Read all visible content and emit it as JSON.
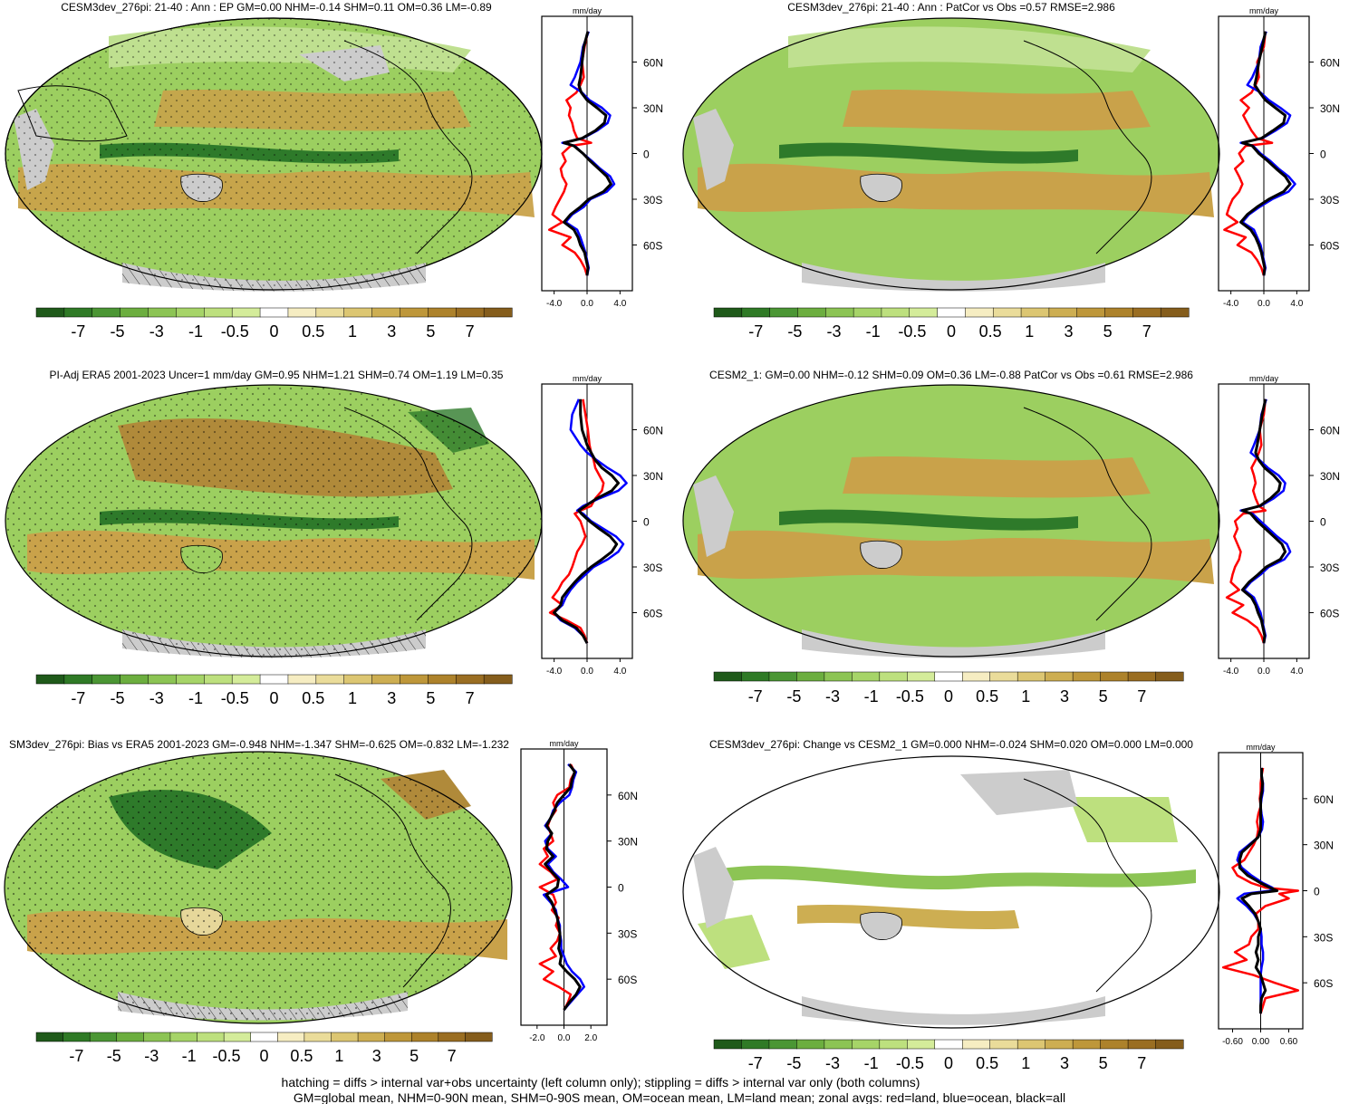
{
  "colorbar": {
    "labels": [
      "-7",
      "-5",
      "-3",
      "-1",
      "-0.5",
      "0",
      "0.5",
      "1",
      "3",
      "5",
      "7"
    ],
    "colors": [
      "#1f5a1a",
      "#2f7a26",
      "#4b9634",
      "#6cae3f",
      "#8cc454",
      "#a6d468",
      "#bde07e",
      "#d4ec9a",
      "#ffffff",
      "#f6edc2",
      "#eadc9a",
      "#dcc672",
      "#cdae52",
      "#be973a",
      "#ad822b",
      "#9a6e22",
      "#855d1c"
    ]
  },
  "colors": {
    "land": "#ff0000",
    "ocean": "#0000ff",
    "all": "#000000",
    "missing": "#cccccc"
  },
  "panels": [
    {
      "title": "CESM3dev_276pi: 21-40 : Ann : EP GM=0.00 NHM=-0.14 SHM=0.11 OM=0.36 LM=-0.89",
      "unit": "mm/day",
      "xticks": [
        "-4.0",
        "0.0",
        "4.0"
      ],
      "yticks": [
        "60N",
        "30N",
        "0",
        "30S",
        "60S"
      ]
    },
    {
      "title": "CESM3dev_276pi: 21-40 : Ann : PatCor vs Obs =0.57 RMSE=2.986",
      "unit": "mm/day",
      "xticks": [
        "-4.0",
        "0.0",
        "4.0"
      ],
      "yticks": [
        "60N",
        "30N",
        "0",
        "30S",
        "60S"
      ]
    },
    {
      "title": "PI-Adj ERA5 2001-2023 Uncer=1 mm/day GM=0.95 NHM=1.21 SHM=0.74 OM=1.19 LM=0.35",
      "unit": "mm/day",
      "xticks": [
        "-4.0",
        "0.0",
        "4.0"
      ],
      "yticks": [
        "60N",
        "30N",
        "0",
        "30S",
        "60S"
      ]
    },
    {
      "title": "CESM2_1: GM=0.00 NHM=-0.12 SHM=0.09 OM=0.36 LM=-0.88 PatCor vs Obs =0.61 RMSE=2.986",
      "unit": "mm/day",
      "xticks": [
        "-4.0",
        "0.0",
        "4.0"
      ],
      "yticks": [
        "60N",
        "30N",
        "0",
        "30S",
        "60S"
      ]
    },
    {
      "title": "SM3dev_276pi: Bias vs ERA5 2001-2023 GM=-0.948 NHM=-1.347 SHM=-0.625 OM=-0.832 LM=-1.232",
      "unit": "mm/day",
      "xticks": [
        "-2.0",
        "0.0",
        "2.0"
      ],
      "yticks": [
        "60N",
        "30N",
        "0",
        "30S",
        "60S"
      ]
    },
    {
      "title": "CESM3dev_276pi: Change vs CESM2_1 GM=0.000 NHM=-0.024 SHM=0.020 OM=0.000 LM=0.000",
      "unit": "mm/day",
      "xticks": [
        "-0.60",
        "0.00",
        "0.60"
      ],
      "yticks": [
        "60N",
        "30N",
        "0",
        "30S",
        "60S"
      ]
    }
  ],
  "footnote": {
    "line1": "hatching = diffs > internal var+obs uncertainty (left column only); stippling = diffs > internal var only (both columns)",
    "line2": "GM=global mean, NHM=0-90N mean, SHM=0-90S mean, OM=ocean mean, LM=land mean; zonal avgs: red=land, blue=ocean, black=all"
  },
  "chart_data": [
    {
      "type": "line",
      "title": "CESM3dev_276pi: 21-40 : Ann : EP GM=0.00 NHM=-0.14 SHM=0.11 OM=0.36 LM=-0.89",
      "xlabel": "mm/day",
      "xlim": [
        -5.5,
        5.5
      ],
      "ylim": [
        -90,
        90
      ],
      "y": [
        80,
        70,
        60,
        50,
        45,
        40,
        35,
        30,
        25,
        20,
        15,
        10,
        7,
        5,
        0,
        -5,
        -10,
        -15,
        -20,
        -25,
        -30,
        -35,
        -40,
        -45,
        -50,
        -55,
        -60,
        -65,
        -70,
        -75,
        -80
      ],
      "series": [
        {
          "color": "land",
          "values": [
            0.1,
            -0.3,
            -0.6,
            -0.4,
            -0.8,
            -1.3,
            -2.5,
            -2.0,
            -2.2,
            -1.8,
            -1.6,
            -1.2,
            0.5,
            -2.0,
            -3.0,
            -2.6,
            -3.2,
            -3.0,
            -2.5,
            -2.8,
            -3.3,
            -3.8,
            -4.2,
            -3.0,
            -4.6,
            -2.0,
            -3.0,
            -1.5,
            -0.8,
            -0.3,
            0.0
          ]
        },
        {
          "color": "ocean",
          "values": [
            0.2,
            -0.5,
            -0.8,
            -1.5,
            -2.0,
            -0.6,
            0.3,
            1.8,
            2.8,
            2.5,
            1.2,
            -0.5,
            -3.0,
            -1.5,
            -0.5,
            0.6,
            1.6,
            2.8,
            3.3,
            2.4,
            0.4,
            -0.4,
            -1.8,
            -2.6,
            -1.2,
            -0.8,
            -0.5,
            -0.2,
            0.0,
            0.2,
            0.0
          ]
        },
        {
          "color": "all",
          "values": [
            0.1,
            -0.4,
            -0.6,
            -0.8,
            -1.0,
            -0.7,
            0.0,
            1.2,
            2.3,
            2.1,
            1.0,
            -0.6,
            -2.8,
            -1.6,
            -0.5,
            0.4,
            1.4,
            2.4,
            2.9,
            2.0,
            0.2,
            -0.8,
            -2.0,
            -2.8,
            -1.6,
            -1.1,
            -0.8,
            -0.3,
            -0.1,
            0.1,
            0.0
          ]
        }
      ]
    },
    {
      "type": "line",
      "title": "CESM3dev_276pi: 21-40 : Ann : PatCor vs Obs =0.57 RMSE=2.986",
      "xlabel": "mm/day",
      "xlim": [
        -5.5,
        5.5
      ],
      "ylim": [
        -90,
        90
      ],
      "y": [
        80,
        70,
        60,
        50,
        45,
        40,
        35,
        30,
        25,
        20,
        15,
        10,
        7,
        5,
        0,
        -5,
        -10,
        -15,
        -20,
        -25,
        -30,
        -35,
        -40,
        -45,
        -50,
        -55,
        -60,
        -65,
        -70,
        -75,
        -80
      ],
      "series": [
        {
          "color": "land",
          "values": [
            0.2,
            0.0,
            -0.8,
            -0.6,
            -1.0,
            -1.5,
            -2.8,
            -1.8,
            -2.5,
            -2.0,
            -1.5,
            -0.8,
            1.0,
            -2.2,
            -3.0,
            -2.5,
            -3.5,
            -3.0,
            -2.6,
            -3.0,
            -3.8,
            -4.2,
            -4.5,
            -3.2,
            -4.8,
            -2.2,
            -3.2,
            -1.5,
            -0.8,
            -0.3,
            0.0
          ]
        },
        {
          "color": "ocean",
          "values": [
            0.3,
            -0.4,
            -0.6,
            -1.4,
            -2.0,
            -0.4,
            0.6,
            2.0,
            3.2,
            2.8,
            1.4,
            -0.2,
            -2.8,
            -1.3,
            -0.4,
            0.8,
            1.8,
            3.0,
            3.8,
            3.0,
            1.0,
            -0.5,
            -1.8,
            -2.6,
            -1.2,
            -0.8,
            -0.4,
            -0.2,
            0.0,
            0.2,
            0.0
          ]
        },
        {
          "color": "all",
          "values": [
            0.2,
            -0.2,
            -0.6,
            -0.9,
            -1.1,
            -0.5,
            0.2,
            1.4,
            2.6,
            2.4,
            1.1,
            -0.3,
            -2.6,
            -1.4,
            -0.6,
            0.5,
            1.5,
            2.6,
            3.2,
            2.4,
            0.6,
            -0.8,
            -2.0,
            -2.8,
            -1.6,
            -1.0,
            -0.6,
            -0.3,
            -0.1,
            0.1,
            0.0
          ]
        }
      ]
    },
    {
      "type": "line",
      "title": "PI-Adj ERA5 2001-2023 Uncer=1 mm/day GM=0.95 NHM=1.21 SHM=0.74 OM=1.19 LM=0.35",
      "xlabel": "mm/day",
      "xlim": [
        -5.5,
        5.5
      ],
      "ylim": [
        -90,
        90
      ],
      "y": [
        80,
        70,
        60,
        50,
        45,
        40,
        35,
        30,
        25,
        20,
        15,
        10,
        7,
        5,
        0,
        -5,
        -10,
        -15,
        -20,
        -25,
        -30,
        -35,
        -40,
        -45,
        -50,
        -55,
        -60,
        -65,
        -70,
        -75,
        -80
      ],
      "series": [
        {
          "color": "land",
          "values": [
            -0.5,
            -0.2,
            0.1,
            0.3,
            0.5,
            0.8,
            1.0,
            1.5,
            2.0,
            1.8,
            1.0,
            0.5,
            -0.8,
            -1.5,
            -0.8,
            -0.5,
            -0.2,
            -0.6,
            -1.2,
            -1.5,
            -1.8,
            -2.2,
            -3.0,
            -3.5,
            -4.2,
            -3.0,
            -4.5,
            -2.5,
            -0.8,
            -0.3,
            0.0
          ]
        },
        {
          "color": "ocean",
          "values": [
            -1.0,
            -1.8,
            -2.0,
            -0.8,
            0.0,
            1.2,
            2.5,
            4.0,
            4.8,
            3.8,
            1.5,
            -0.5,
            -1.2,
            -0.5,
            0.5,
            2.0,
            3.5,
            4.4,
            3.8,
            2.5,
            0.8,
            -0.2,
            -1.2,
            -2.0,
            -2.6,
            -3.0,
            -4.0,
            -3.2,
            -1.5,
            -0.5,
            0.0
          ]
        },
        {
          "color": "all",
          "values": [
            -0.8,
            -0.8,
            -0.6,
            0.0,
            0.5,
            1.0,
            1.8,
            3.0,
            3.8,
            3.0,
            1.2,
            -0.2,
            -1.0,
            -0.7,
            0.3,
            1.5,
            2.8,
            3.6,
            3.0,
            1.8,
            0.5,
            -0.6,
            -1.5,
            -2.3,
            -3.0,
            -3.2,
            -4.0,
            -3.0,
            -1.3,
            -0.5,
            0.0
          ]
        }
      ]
    },
    {
      "type": "line",
      "title": "CESM2_1: GM=0.00 NHM=-0.12 SHM=0.09 OM=0.36 LM=-0.88 PatCor vs Obs =0.61 RMSE=2.986",
      "xlabel": "mm/day",
      "xlim": [
        -5.5,
        5.5
      ],
      "ylim": [
        -90,
        90
      ],
      "y": [
        80,
        70,
        60,
        50,
        45,
        40,
        35,
        30,
        25,
        20,
        15,
        10,
        7,
        5,
        0,
        -5,
        -10,
        -15,
        -20,
        -25,
        -30,
        -35,
        -40,
        -45,
        -50,
        -55,
        -60,
        -65,
        -70,
        -75,
        -80
      ],
      "series": [
        {
          "color": "land",
          "values": [
            0.2,
            0.0,
            -0.5,
            -0.3,
            -0.6,
            -1.0,
            -1.5,
            -1.2,
            -1.0,
            -1.3,
            -1.0,
            -0.6,
            0.2,
            -2.5,
            -3.5,
            -3.2,
            -3.6,
            -3.2,
            -2.8,
            -3.0,
            -3.5,
            -3.8,
            -4.0,
            -3.0,
            -4.5,
            -2.5,
            -3.8,
            -2.0,
            -0.8,
            -0.3,
            0.0
          ]
        },
        {
          "color": "ocean",
          "values": [
            0.3,
            -0.3,
            -0.5,
            -1.2,
            -1.6,
            -0.5,
            0.5,
            1.8,
            2.6,
            2.4,
            1.2,
            -0.4,
            -2.8,
            -1.4,
            -0.4,
            0.6,
            1.6,
            2.8,
            3.2,
            2.5,
            0.6,
            -0.4,
            -1.6,
            -2.4,
            -1.2,
            -0.8,
            -0.4,
            -0.2,
            0.0,
            0.2,
            0.0
          ]
        },
        {
          "color": "all",
          "values": [
            0.2,
            -0.2,
            -0.5,
            -0.8,
            -1.0,
            -0.6,
            0.1,
            1.2,
            2.0,
            1.8,
            0.8,
            -0.5,
            -2.6,
            -1.6,
            -0.8,
            0.2,
            1.2,
            2.2,
            2.6,
            2.0,
            0.3,
            -0.7,
            -1.8,
            -2.6,
            -1.5,
            -1.0,
            -0.7,
            -0.3,
            -0.1,
            0.1,
            0.0
          ]
        }
      ]
    },
    {
      "type": "line",
      "title": "SM3dev_276pi: Bias vs ERA5 2001-2023 GM=-0.948 NHM=-1.347 SHM=-0.625 OM=-0.832 LM=-1.232",
      "xlabel": "mm/day",
      "xlim": [
        -3.2,
        3.2
      ],
      "ylim": [
        -90,
        90
      ],
      "y": [
        80,
        75,
        70,
        65,
        60,
        55,
        50,
        45,
        40,
        35,
        30,
        25,
        20,
        15,
        10,
        5,
        0,
        -5,
        -10,
        -15,
        -20,
        -25,
        -30,
        -35,
        -40,
        -45,
        -50,
        -55,
        -60,
        -65,
        -70,
        -75,
        -80
      ],
      "series": [
        {
          "color": "land",
          "values": [
            0.5,
            0.8,
            0.5,
            0.4,
            -0.5,
            -0.8,
            -0.6,
            -1.0,
            -1.2,
            -1.0,
            -0.8,
            -1.5,
            -1.2,
            -1.8,
            -1.0,
            -0.5,
            -1.8,
            -0.8,
            -0.6,
            -0.9,
            -0.4,
            -0.6,
            -0.3,
            -0.5,
            -1.0,
            -0.6,
            -1.8,
            -0.8,
            -1.5,
            -0.4,
            0.5,
            0.3,
            0.0
          ]
        },
        {
          "color": "ocean",
          "values": [
            0.3,
            0.9,
            0.7,
            0.6,
            0.4,
            -0.3,
            -0.8,
            -1.0,
            -1.4,
            -0.9,
            -1.4,
            -1.2,
            -0.6,
            -1.2,
            -0.8,
            -0.2,
            0.3,
            -1.5,
            -1.0,
            -0.6,
            -0.5,
            -0.3,
            -0.3,
            -0.2,
            -0.2,
            0.0,
            0.2,
            0.6,
            1.2,
            1.5,
            1.0,
            0.5,
            0.0
          ]
        },
        {
          "color": "all",
          "values": [
            0.4,
            0.8,
            0.6,
            0.5,
            0.0,
            -0.5,
            -0.7,
            -1.0,
            -1.3,
            -0.9,
            -1.2,
            -1.3,
            -0.8,
            -1.4,
            -0.9,
            -0.4,
            -0.5,
            -1.3,
            -0.9,
            -0.7,
            -0.5,
            -0.4,
            -0.3,
            -0.3,
            -0.4,
            -0.2,
            -0.3,
            0.2,
            0.8,
            1.2,
            0.9,
            0.4,
            0.0
          ]
        }
      ]
    },
    {
      "type": "line",
      "title": "CESM3dev_276pi: Change vs CESM2_1 GM=0.000 NHM=-0.024 SHM=0.020 OM=0.000 LM=0.000",
      "xlabel": "mm/day",
      "xlim": [
        -0.9,
        0.9
      ],
      "ylim": [
        -90,
        90
      ],
      "y": [
        80,
        75,
        70,
        65,
        60,
        55,
        50,
        45,
        40,
        35,
        30,
        25,
        20,
        15,
        10,
        5,
        2,
        0,
        -2,
        -5,
        -10,
        -15,
        -20,
        -25,
        -30,
        -35,
        -40,
        -45,
        -50,
        -55,
        -60,
        -65,
        -70,
        -75,
        -80
      ],
      "series": [
        {
          "color": "land",
          "values": [
            0.05,
            0.02,
            0.0,
            0.0,
            -0.02,
            0.0,
            -0.05,
            -0.08,
            -0.05,
            -0.08,
            -0.15,
            -0.25,
            -0.35,
            -0.6,
            -0.5,
            -0.2,
            0.1,
            0.8,
            0.4,
            0.6,
            0.1,
            -0.1,
            -0.05,
            -0.05,
            -0.2,
            -0.25,
            -0.55,
            -0.3,
            -0.8,
            -0.15,
            0.3,
            0.8,
            0.1,
            0.05,
            0.0
          ]
        },
        {
          "color": "ocean",
          "values": [
            0.02,
            0.02,
            0.05,
            0.05,
            0.02,
            0.0,
            0.02,
            0.05,
            0.03,
            -0.05,
            -0.25,
            -0.45,
            -0.5,
            -0.4,
            -0.2,
            0.05,
            0.25,
            0.2,
            -0.35,
            -0.5,
            -0.3,
            -0.15,
            -0.05,
            0.0,
            0.02,
            0.02,
            0.05,
            0.05,
            0.02,
            0.0,
            0.0,
            0.0,
            0.0,
            0.0,
            0.0
          ]
        },
        {
          "color": "all",
          "values": [
            0.02,
            0.02,
            0.04,
            0.03,
            0.0,
            0.0,
            0.0,
            0.0,
            0.0,
            -0.05,
            -0.22,
            -0.4,
            -0.45,
            -0.45,
            -0.28,
            0.0,
            0.2,
            0.35,
            -0.2,
            -0.4,
            -0.25,
            -0.12,
            -0.05,
            0.0,
            -0.05,
            -0.05,
            -0.1,
            -0.05,
            -0.1,
            0.0,
            0.05,
            0.1,
            0.02,
            0.0,
            0.0
          ]
        }
      ]
    }
  ]
}
